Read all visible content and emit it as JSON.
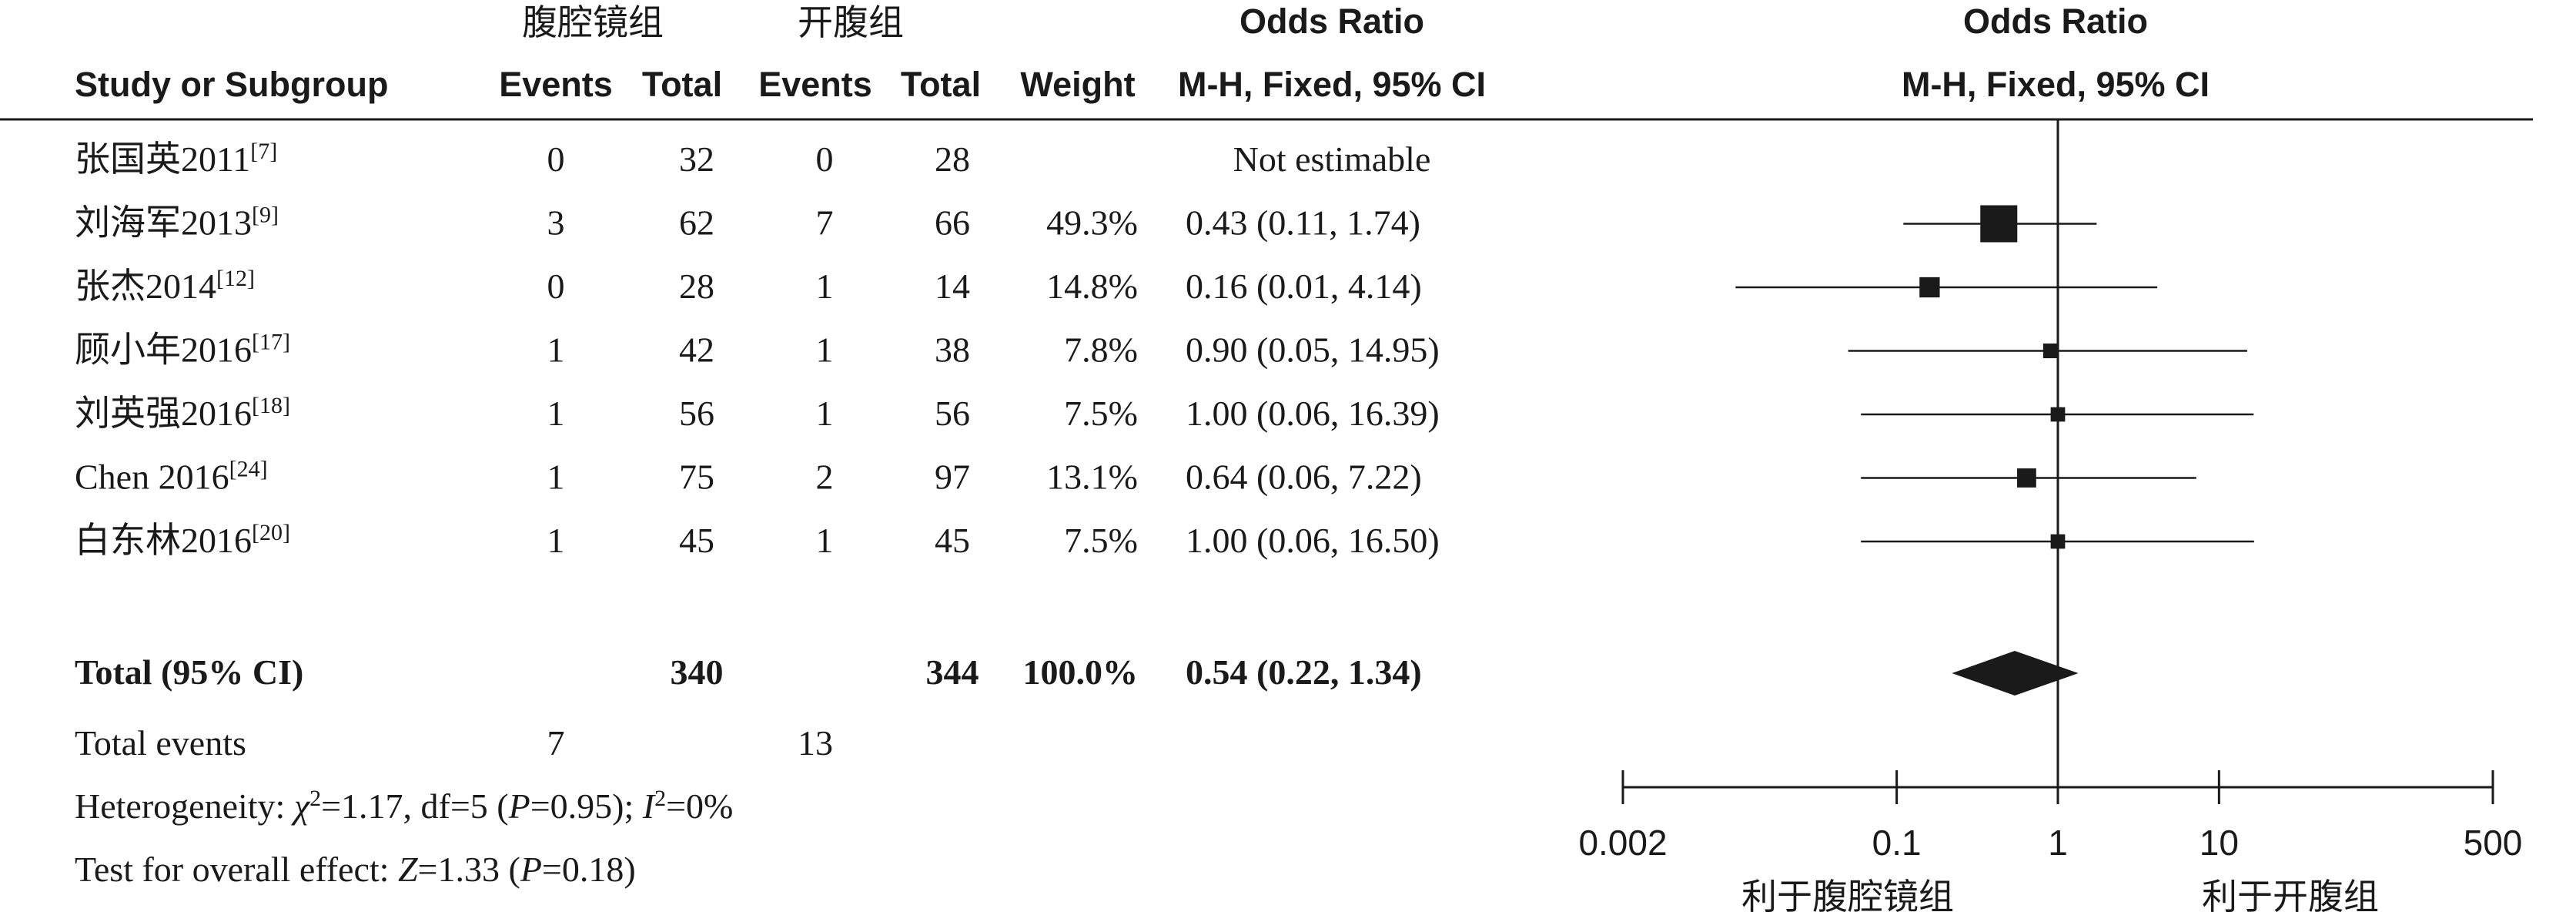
{
  "chart_data": {
    "type": "forest",
    "headers": {
      "group1": "腹腔镜组",
      "group2": "开腹组",
      "odds_ratio_col": "Odds Ratio",
      "odds_ratio_plot": "Odds Ratio",
      "study": "Study or Subgroup",
      "events1": "Events",
      "total1": "Total",
      "events2": "Events",
      "total2": "Total",
      "weight": "Weight",
      "method_col": "M-H, Fixed, 95% CI",
      "method_plot": "M-H, Fixed, 95% CI"
    },
    "studies": [
      {
        "name": "张国英2011",
        "ref": "[7]",
        "e1": "0",
        "n1": "32",
        "e2": "0",
        "n2": "28",
        "weight": "",
        "ci_text": "Not estimable",
        "or": null,
        "lo": null,
        "hi": null,
        "w": 0
      },
      {
        "name": "刘海军2013",
        "ref": "[9]",
        "e1": "3",
        "n1": "62",
        "e2": "7",
        "n2": "66",
        "weight": "49.3%",
        "ci_text": "0.43 (0.11, 1.74)",
        "or": 0.43,
        "lo": 0.11,
        "hi": 1.74,
        "w": 49.3
      },
      {
        "name": "张杰2014",
        "ref": "[12]",
        "e1": "0",
        "n1": "28",
        "e2": "1",
        "n2": "14",
        "weight": "14.8%",
        "ci_text": "0.16 (0.01, 4.14)",
        "or": 0.16,
        "lo": 0.01,
        "hi": 4.14,
        "w": 14.8
      },
      {
        "name": "顾小年2016",
        "ref": "[17]",
        "e1": "1",
        "n1": "42",
        "e2": "1",
        "n2": "38",
        "weight": "7.8%",
        "ci_text": "0.90 (0.05, 14.95)",
        "or": 0.9,
        "lo": 0.05,
        "hi": 14.95,
        "w": 7.8
      },
      {
        "name": "刘英强2016",
        "ref": "[18]",
        "e1": "1",
        "n1": "56",
        "e2": "1",
        "n2": "56",
        "weight": "7.5%",
        "ci_text": "1.00 (0.06, 16.39)",
        "or": 1.0,
        "lo": 0.06,
        "hi": 16.39,
        "w": 7.5
      },
      {
        "name": "Chen 2016",
        "ref": "[24]",
        "e1": "1",
        "n1": "75",
        "e2": "2",
        "n2": "97",
        "weight": "13.1%",
        "ci_text": "0.64 (0.06, 7.22)",
        "or": 0.64,
        "lo": 0.06,
        "hi": 7.22,
        "w": 13.1
      },
      {
        "name": "白东林2016",
        "ref": "[20]",
        "e1": "1",
        "n1": "45",
        "e2": "1",
        "n2": "45",
        "weight": "7.5%",
        "ci_text": "1.00 (0.06, 16.50)",
        "or": 1.0,
        "lo": 0.06,
        "hi": 16.5,
        "w": 7.5
      }
    ],
    "total": {
      "label": "Total (95% CI)",
      "n1": "340",
      "n2": "344",
      "weight": "100.0%",
      "ci_text": "0.54 (0.22, 1.34)",
      "or": 0.54,
      "lo": 0.22,
      "hi": 1.34
    },
    "total_events": {
      "label": "Total events",
      "e1": "7",
      "e2": "13"
    },
    "heterogeneity": {
      "prefix": "Heterogeneity: ",
      "chi": "χ",
      "chi_rest": "=1.17, df=5 (",
      "p": "P",
      "p_rest": "=0.95); ",
      "i": "I",
      "i_rest": "=0%"
    },
    "overall": {
      "prefix": "Test for overall effect: ",
      "z": "Z",
      "z_rest": "=1.33 (",
      "p": "P",
      "p_rest": "=0.18)"
    },
    "axis": {
      "scale": "log",
      "ticks": [
        0.002,
        0.1,
        1,
        10,
        500
      ],
      "tick_labels": [
        "0.002",
        "0.1",
        "1",
        "10",
        "500"
      ],
      "xlim": [
        0.002,
        500
      ]
    },
    "favours_left": "利于腹腔镜组",
    "favours_right": "利于开腹组"
  }
}
